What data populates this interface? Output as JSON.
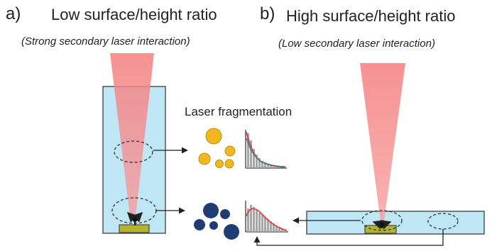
{
  "panel_a": {
    "letter": "a)",
    "title": "Low surface/height ratio",
    "subtitle": "(Strong secondary laser interaction)"
  },
  "panel_b": {
    "letter": "b)",
    "title": "High surface/height ratio",
    "subtitle": "(Low secondary laser interaction)"
  },
  "fragmentation_label": "Laser fragmentation",
  "colors": {
    "liquid": "#bfe6f5",
    "laser": "#f58c8c",
    "target": "#b4b22f",
    "small_particles": "#f2b71e",
    "large_particles": "#1f3d73"
  }
}
